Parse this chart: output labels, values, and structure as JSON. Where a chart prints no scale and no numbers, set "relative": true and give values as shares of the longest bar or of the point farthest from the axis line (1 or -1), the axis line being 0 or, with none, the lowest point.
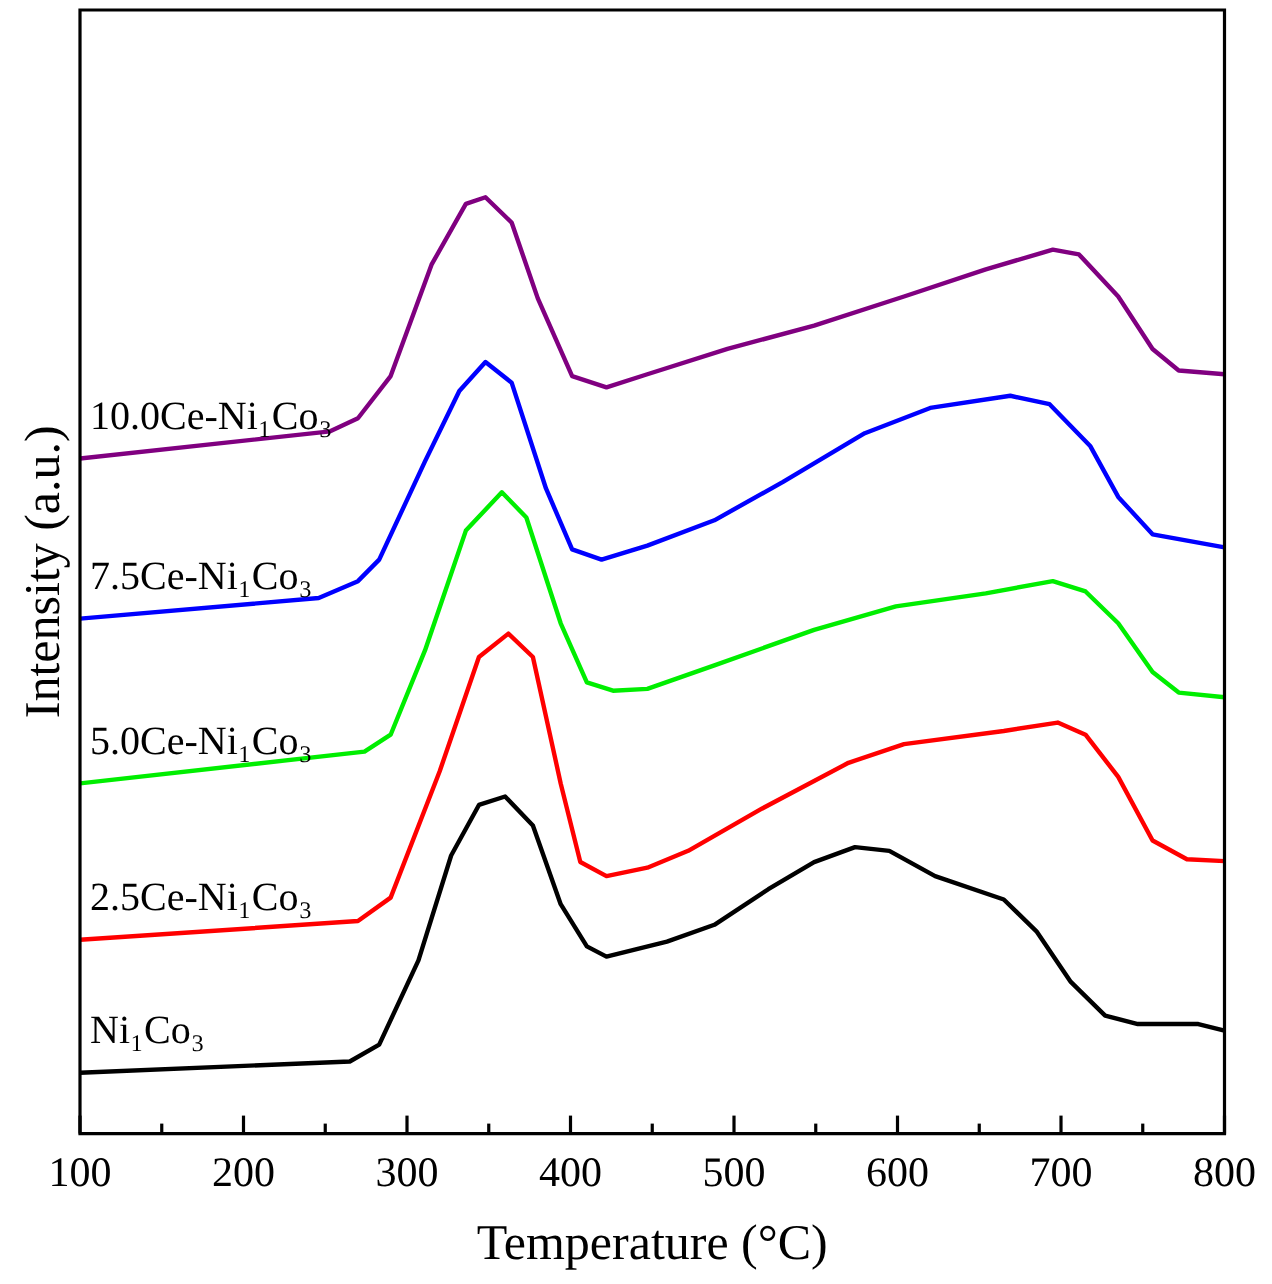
{
  "chart_data": {
    "type": "line",
    "relative": true,
    "xlabel": "Temperature (°C)",
    "ylabel": "Intensity (a.u.)",
    "xlim": [
      100,
      800
    ],
    "xticks": [
      100,
      {
        "value": 150,
        "label": null
      },
      200,
      {
        "value": 250,
        "label": null
      },
      300,
      {
        "value": 350,
        "label": null
      },
      400,
      {
        "value": 450,
        "label": null
      },
      500,
      {
        "value": 550,
        "label": null
      },
      600,
      {
        "value": 650,
        "label": null
      },
      700,
      {
        "value": 750,
        "label": null
      },
      800
    ],
    "grid": false,
    "legend": false,
    "marker": "none",
    "line_style": "solid",
    "series": [
      {
        "name": "Ni₁Co₃",
        "color": "#000000",
        "x": [
          100,
          265,
          283,
          307,
          327,
          344,
          360,
          377,
          394,
          410,
          422,
          459,
          488,
          521,
          549,
          574,
          595,
          623,
          665,
          685,
          706,
          727,
          747,
          784,
          800
        ],
        "values": [
          0.065,
          0.077,
          0.095,
          0.185,
          0.297,
          0.351,
          0.36,
          0.329,
          0.245,
          0.2,
          0.189,
          0.205,
          0.223,
          0.261,
          0.29,
          0.306,
          0.302,
          0.275,
          0.25,
          0.216,
          0.162,
          0.126,
          0.117,
          0.117,
          0.11
        ]
      },
      {
        "name": "2.5Ce-Ni₁Co₃",
        "color": "#ff0000",
        "x": [
          100,
          270,
          290,
          320,
          344,
          362,
          377,
          394,
          406,
          422,
          447,
          472,
          517,
          570,
          604,
          665,
          698,
          715,
          735,
          756,
          777,
          800
        ],
        "values": [
          0.207,
          0.227,
          0.252,
          0.387,
          0.509,
          0.534,
          0.509,
          0.374,
          0.29,
          0.275,
          0.284,
          0.302,
          0.347,
          0.396,
          0.416,
          0.43,
          0.439,
          0.426,
          0.381,
          0.313,
          0.293,
          0.291
        ]
      },
      {
        "name": "5.0Ce-Ni₁Co₃",
        "color": "#00ee00",
        "x": [
          100,
          274,
          290,
          311,
          336,
          358,
          373,
          394,
          410,
          426,
          447,
          488,
          549,
          599,
          654,
          695,
          715,
          735,
          756,
          772,
          800
        ],
        "values": [
          0.374,
          0.408,
          0.426,
          0.516,
          0.644,
          0.685,
          0.658,
          0.545,
          0.482,
          0.473,
          0.475,
          0.5,
          0.538,
          0.563,
          0.577,
          0.59,
          0.579,
          0.545,
          0.493,
          0.471,
          0.466
        ]
      },
      {
        "name": "7.5Ce-Ni₁Co₃",
        "color": "#0000ff",
        "x": [
          100,
          246,
          270,
          283,
          311,
          332,
          348,
          364,
          385,
          401,
          419,
          447,
          488,
          530,
          580,
          620,
          669,
          693,
          718,
          735,
          756,
          800
        ],
        "values": [
          0.55,
          0.572,
          0.59,
          0.613,
          0.718,
          0.793,
          0.824,
          0.802,
          0.689,
          0.624,
          0.613,
          0.628,
          0.655,
          0.696,
          0.748,
          0.775,
          0.788,
          0.779,
          0.734,
          0.68,
          0.64,
          0.626
        ]
      },
      {
        "name": "10.0Ce-Ni₁Co₃",
        "color": "#800080",
        "x": [
          100,
          253,
          270,
          290,
          315,
          336,
          348,
          364,
          380,
          401,
          422,
          447,
          496,
          549,
          604,
          654,
          695,
          711,
          735,
          756,
          772,
          800
        ],
        "values": [
          0.721,
          0.75,
          0.764,
          0.809,
          0.928,
          0.993,
          1.0,
          0.973,
          0.892,
          0.809,
          0.797,
          0.811,
          0.838,
          0.863,
          0.894,
          0.923,
          0.944,
          0.939,
          0.894,
          0.838,
          0.815,
          0.811
        ]
      }
    ]
  }
}
